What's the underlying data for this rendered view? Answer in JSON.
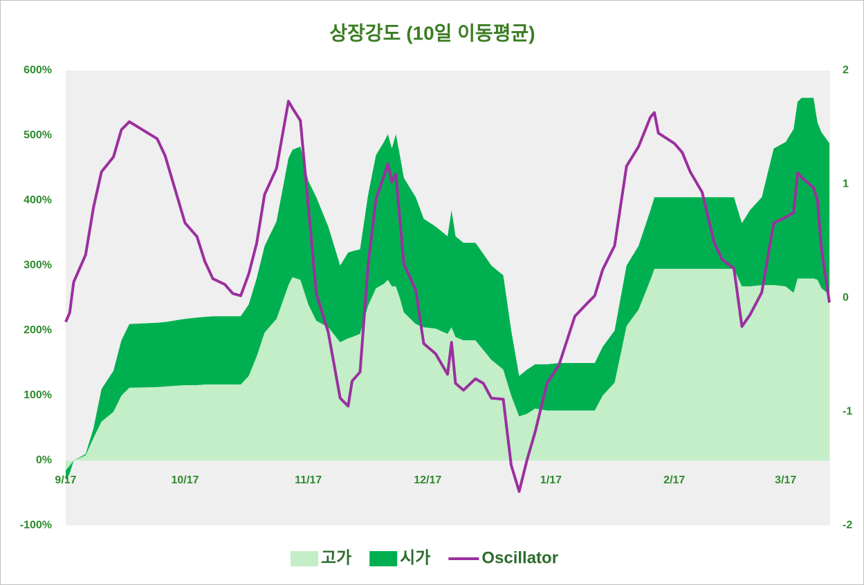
{
  "chart_data": {
    "type": "area-line",
    "title": "상장강도 (10일 이동평균)",
    "x": [
      "9/17",
      "9/18",
      "9/19",
      "9/22",
      "9/24",
      "9/26",
      "9/29",
      "10/1",
      "10/3",
      "10/10",
      "10/12",
      "10/17",
      "10/20",
      "10/22",
      "10/24",
      "10/27",
      "10/29",
      "10/31",
      "11/2",
      "11/4",
      "11/6",
      "11/9",
      "11/12",
      "11/13",
      "11/15",
      "11/17",
      "11/19",
      "11/22",
      "11/25",
      "11/27",
      "11/28",
      "11/30",
      "12/2",
      "12/4",
      "12/6",
      "12/7",
      "12/8",
      "12/9",
      "12/10",
      "12/11",
      "12/14",
      "12/16",
      "12/19",
      "12/22",
      "12/23",
      "12/24",
      "12/26",
      "12/29",
      "12/31",
      "1/2",
      "1/5",
      "1/7",
      "1/9",
      "1/11",
      "1/13",
      "1/16",
      "1/19",
      "1/23",
      "1/26",
      "1/28",
      "1/30",
      "2/2",
      "2/5",
      "2/8",
      "2/11",
      "2/12",
      "2/13",
      "2/17",
      "2/19",
      "2/21",
      "2/24",
      "2/27",
      "3/1",
      "3/4",
      "3/6",
      "3/8",
      "3/11",
      "3/14",
      "3/17",
      "3/19",
      "3/20",
      "3/21",
      "3/24",
      "3/25",
      "3/26",
      "3/28"
    ],
    "series": [
      {
        "name": "시가",
        "color": "#00b050",
        "kind": "area",
        "values": [
          -30,
          -20,
          0,
          10,
          50,
          110,
          138,
          185,
          210,
          212,
          213,
          218,
          220,
          221,
          222,
          222,
          222,
          222,
          240,
          280,
          330,
          368,
          465,
          478,
          483,
          430,
          405,
          360,
          300,
          320,
          322,
          325,
          408,
          470,
          490,
          502,
          480,
          502,
          470,
          435,
          405,
          372,
          360,
          345,
          385,
          345,
          335,
          335,
          318,
          300,
          285,
          200,
          130,
          140,
          148,
          148,
          150,
          150,
          150,
          150,
          175,
          200,
          300,
          330,
          385,
          405,
          405,
          405,
          405,
          405,
          405,
          405,
          405,
          405,
          365,
          385,
          405,
          480,
          490,
          510,
          552,
          558,
          558,
          520,
          505,
          488
        ]
      },
      {
        "name": "고가",
        "color": "#c3eec8",
        "kind": "area",
        "values": [
          -15,
          -8,
          0,
          8,
          35,
          60,
          75,
          100,
          112,
          113,
          114,
          116,
          116,
          117,
          117,
          117,
          117,
          117,
          130,
          160,
          197,
          218,
          270,
          282,
          278,
          240,
          215,
          205,
          182,
          188,
          190,
          195,
          238,
          265,
          272,
          278,
          268,
          268,
          250,
          228,
          210,
          205,
          203,
          195,
          205,
          190,
          185,
          185,
          170,
          155,
          140,
          100,
          68,
          72,
          80,
          77,
          77,
          77,
          77,
          77,
          100,
          120,
          207,
          232,
          278,
          295,
          295,
          295,
          295,
          295,
          295,
          295,
          295,
          295,
          268,
          268,
          270,
          270,
          268,
          258,
          280,
          280,
          280,
          278,
          265,
          255
        ]
      },
      {
        "name": "Oscillator",
        "color": "#9b2f9f",
        "kind": "line",
        "axis": "y2",
        "values": [
          -0.21,
          -0.13,
          0.14,
          0.38,
          0.8,
          1.11,
          1.24,
          1.48,
          1.55,
          1.4,
          1.25,
          0.66,
          0.54,
          0.32,
          0.17,
          0.12,
          0.04,
          0.02,
          0.21,
          0.48,
          0.91,
          1.14,
          1.73,
          1.67,
          1.56,
          0.8,
          0.04,
          -0.3,
          -0.88,
          -0.95,
          -0.73,
          -0.65,
          0.28,
          0.87,
          1.07,
          1.18,
          1.02,
          1.09,
          0.69,
          0.3,
          0.07,
          -0.4,
          -0.49,
          -0.67,
          -0.39,
          -0.75,
          -0.81,
          -0.71,
          -0.75,
          -0.88,
          -0.89,
          -1.47,
          -1.7,
          -1.42,
          -1.18,
          -0.75,
          -0.59,
          -0.16,
          -0.05,
          0.02,
          0.25,
          0.46,
          1.16,
          1.33,
          1.59,
          1.63,
          1.45,
          1.36,
          1.28,
          1.11,
          0.93,
          0.49,
          0.34,
          0.26,
          -0.25,
          -0.15,
          0.05,
          0.66,
          0.71,
          0.75,
          1.1,
          1.06,
          0.97,
          0.86,
          0.43,
          -0.04
        ]
      }
    ],
    "xlim": [
      "9/17",
      "3/28"
    ],
    "xticks": [
      "9/17",
      "10/17",
      "11/17",
      "12/17",
      "1/17",
      "2/17",
      "3/17"
    ],
    "ylim": [
      -100,
      600
    ],
    "yticks": [
      {
        "value": -100,
        "label": "-100%"
      },
      {
        "value": 0,
        "label": "0%"
      },
      {
        "value": 100,
        "label": "100%"
      },
      {
        "value": 200,
        "label": "200%"
      },
      {
        "value": 300,
        "label": "300%"
      },
      {
        "value": 400,
        "label": "400%"
      },
      {
        "value": 500,
        "label": "500%"
      },
      {
        "value": 600,
        "label": "600%"
      }
    ],
    "y2lim": [
      -2,
      2
    ],
    "y2ticks": [
      -2,
      -1,
      0,
      1,
      2
    ],
    "grid": false,
    "legend": "bottom"
  }
}
